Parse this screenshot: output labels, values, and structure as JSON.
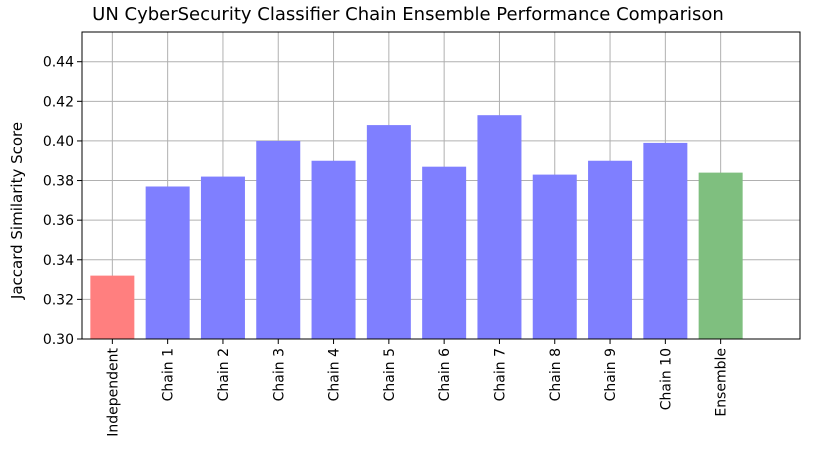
{
  "chart_data": {
    "type": "bar",
    "title": "UN CyberSecurity Classifier Chain Ensemble Performance Comparison",
    "xlabel": "",
    "ylabel": "Jaccard Similarity Score",
    "ylim": [
      0.3,
      0.455
    ],
    "yticks": [
      "0.30",
      "0.32",
      "0.34",
      "0.36",
      "0.38",
      "0.40",
      "0.42",
      "0.44"
    ],
    "grid": true,
    "categories": [
      "Independent",
      "Chain 1",
      "Chain 2",
      "Chain 3",
      "Chain 4",
      "Chain 5",
      "Chain 6",
      "Chain 7",
      "Chain 8",
      "Chain 9",
      "Chain 10",
      "Ensemble"
    ],
    "values": [
      0.332,
      0.377,
      0.382,
      0.4,
      0.39,
      0.408,
      0.387,
      0.413,
      0.383,
      0.39,
      0.399,
      0.384
    ],
    "colors": [
      "#ff7f7f",
      "#7f7fff",
      "#7f7fff",
      "#7f7fff",
      "#7f7fff",
      "#7f7fff",
      "#7f7fff",
      "#7f7fff",
      "#7f7fff",
      "#7f7fff",
      "#7f7fff",
      "#7fbf7f"
    ]
  }
}
